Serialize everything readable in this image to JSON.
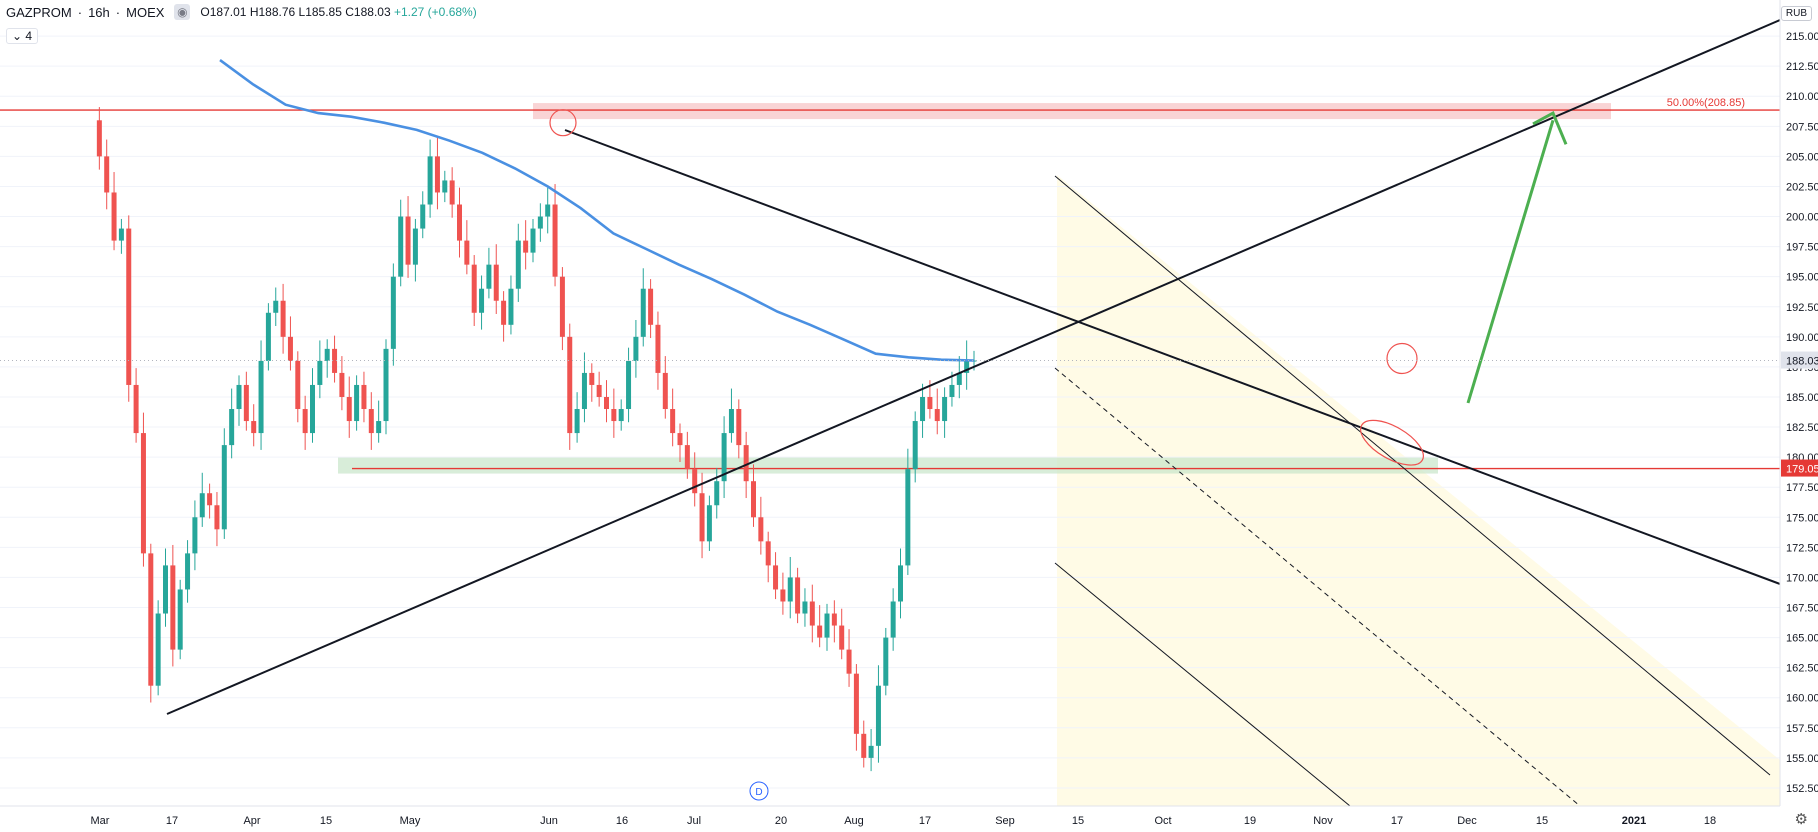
{
  "header": {
    "symbol": "GAZPROM",
    "interval": "16h",
    "exchange": "MOEX",
    "ohlc": {
      "o": "O187.01",
      "h": "H188.76",
      "l": "L185.85",
      "c": "C188.03",
      "chg": "+1.27 (+0.68%)"
    },
    "indicators_count": "4",
    "currency": "RUB"
  },
  "colors": {
    "up": "#26a69a",
    "down": "#ef5350",
    "ma": "#4a90e2",
    "resistance": "#e53935",
    "support_zone": "#c8e6c9",
    "channel_fill": "#fffbe6",
    "arrow": "#4caf50"
  },
  "chart_data": {
    "type": "line",
    "title": "",
    "ylim": [
      151,
      218
    ],
    "y_ticks": [
      "152.50",
      "155.00",
      "157.50",
      "160.00",
      "162.50",
      "165.00",
      "167.50",
      "170.00",
      "172.50",
      "175.00",
      "177.50",
      "180.00",
      "182.50",
      "185.00",
      "187.50",
      "190.00",
      "192.50",
      "195.00",
      "197.50",
      "200.00",
      "202.50",
      "205.00",
      "207.50",
      "210.00",
      "212.50",
      "215.00"
    ],
    "x_ticks": [
      "Mar",
      "17",
      "Apr",
      "15",
      "May",
      "Jun",
      "16",
      "Jul",
      "20",
      "Aug",
      "17",
      "Sep",
      "15",
      "Oct",
      "19",
      "Nov",
      "17",
      "Dec",
      "15",
      "2021",
      "18"
    ],
    "price_series": [
      208,
      205,
      202,
      198,
      199,
      186,
      182,
      172,
      161,
      167,
      171,
      164,
      169,
      172,
      175,
      177,
      176,
      174,
      181,
      184,
      186,
      183,
      182,
      188,
      192,
      193,
      190,
      188,
      184,
      182,
      186,
      188,
      189,
      187,
      185,
      183,
      186,
      184,
      182,
      183,
      189,
      195,
      200,
      196,
      199,
      201,
      205,
      202,
      203,
      201,
      198,
      196,
      192,
      194,
      196,
      193,
      191,
      194,
      198,
      197,
      199,
      200,
      201,
      195,
      190,
      182,
      184,
      187,
      186,
      185,
      184,
      183,
      184,
      188,
      190,
      194,
      191,
      187,
      184,
      182,
      181,
      179,
      177,
      173,
      176,
      178,
      182,
      184,
      181,
      178,
      175,
      173,
      171,
      169,
      168,
      170,
      167,
      168,
      166,
      165,
      167,
      166,
      164,
      162,
      157,
      155,
      156,
      161,
      165,
      168,
      171,
      179,
      183,
      185,
      184,
      183,
      185,
      186,
      187,
      188,
      188.03
    ],
    "moving_average": {
      "name": "",
      "values": [
        213,
        211,
        209.3,
        208.6,
        208.3,
        207.8,
        207.2,
        206.3,
        205.3,
        204,
        202.5,
        200.7,
        198.6,
        197.3,
        196,
        194.8,
        193.5,
        192.1,
        191,
        189.8,
        188.6,
        188.3,
        188.1,
        188.03
      ]
    },
    "resistance": {
      "label": "50.00%(208.85)",
      "value": 208.85
    },
    "support": {
      "label": "179.05",
      "value": 179.05
    },
    "last_price": {
      "label": "188.03",
      "value": 188.03
    },
    "annotations": {
      "marker": "D"
    }
  }
}
